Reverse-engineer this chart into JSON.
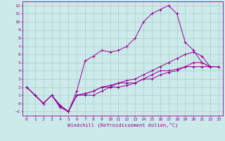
{
  "background_color": "#cceaea",
  "grid_color": "#aacccc",
  "line_color": "#990099",
  "xlabel": "Windchill (Refroidissement éolien,°C)",
  "xlim": [
    -0.5,
    23.5
  ],
  "ylim": [
    -1.5,
    12.5
  ],
  "xticks": [
    0,
    1,
    2,
    3,
    4,
    5,
    6,
    7,
    8,
    9,
    10,
    11,
    12,
    13,
    14,
    15,
    16,
    17,
    18,
    19,
    20,
    21,
    22,
    23
  ],
  "yticks": [
    -1,
    0,
    1,
    2,
    3,
    4,
    5,
    6,
    7,
    8,
    9,
    10,
    11,
    12
  ],
  "series": [
    {
      "x": [
        0,
        1,
        2,
        3,
        4,
        5,
        6,
        7,
        8,
        9,
        10,
        11,
        12,
        13,
        14,
        15,
        16,
        17,
        18,
        19,
        20,
        21,
        22,
        23
      ],
      "y": [
        2,
        1,
        0,
        1,
        -0.5,
        -1,
        1,
        1,
        1,
        1.5,
        2,
        2,
        2.2,
        2.5,
        3,
        3.5,
        4,
        4,
        4.2,
        4.5,
        4.5,
        4.5,
        4.5,
        4.5
      ]
    },
    {
      "x": [
        0,
        1,
        2,
        3,
        4,
        5,
        6,
        7,
        8,
        9,
        10,
        11,
        12,
        13,
        14,
        15,
        16,
        17,
        18,
        19,
        20,
        21,
        22,
        23
      ],
      "y": [
        2,
        1,
        0,
        1,
        -0.3,
        -1,
        1.5,
        5.2,
        5.8,
        6.5,
        6.3,
        6.5,
        7,
        8,
        10,
        11,
        11.5,
        12,
        11,
        7.5,
        6.5,
        5,
        4.5,
        4.5
      ]
    },
    {
      "x": [
        0,
        1,
        2,
        3,
        4,
        5,
        6,
        7,
        8,
        9,
        10,
        11,
        12,
        13,
        14,
        15,
        16,
        17,
        18,
        19,
        20,
        21,
        22,
        23
      ],
      "y": [
        2,
        1,
        0,
        1,
        -0.3,
        -1,
        1,
        1.2,
        1.5,
        2,
        2,
        2.5,
        2.5,
        2.5,
        3,
        3,
        3.5,
        3.8,
        4,
        4.5,
        5,
        5,
        4.5,
        4.5
      ]
    },
    {
      "x": [
        0,
        1,
        2,
        3,
        4,
        5,
        6,
        7,
        8,
        9,
        10,
        11,
        12,
        13,
        14,
        15,
        16,
        17,
        18,
        19,
        20,
        21,
        22,
        23
      ],
      "y": [
        2,
        1,
        0,
        1,
        -0.2,
        -1,
        1,
        1.2,
        1.5,
        2,
        2.2,
        2.5,
        2.8,
        3,
        3.5,
        4,
        4.5,
        5,
        5.5,
        6,
        6.3,
        5.8,
        4.5,
        4.5
      ]
    }
  ]
}
